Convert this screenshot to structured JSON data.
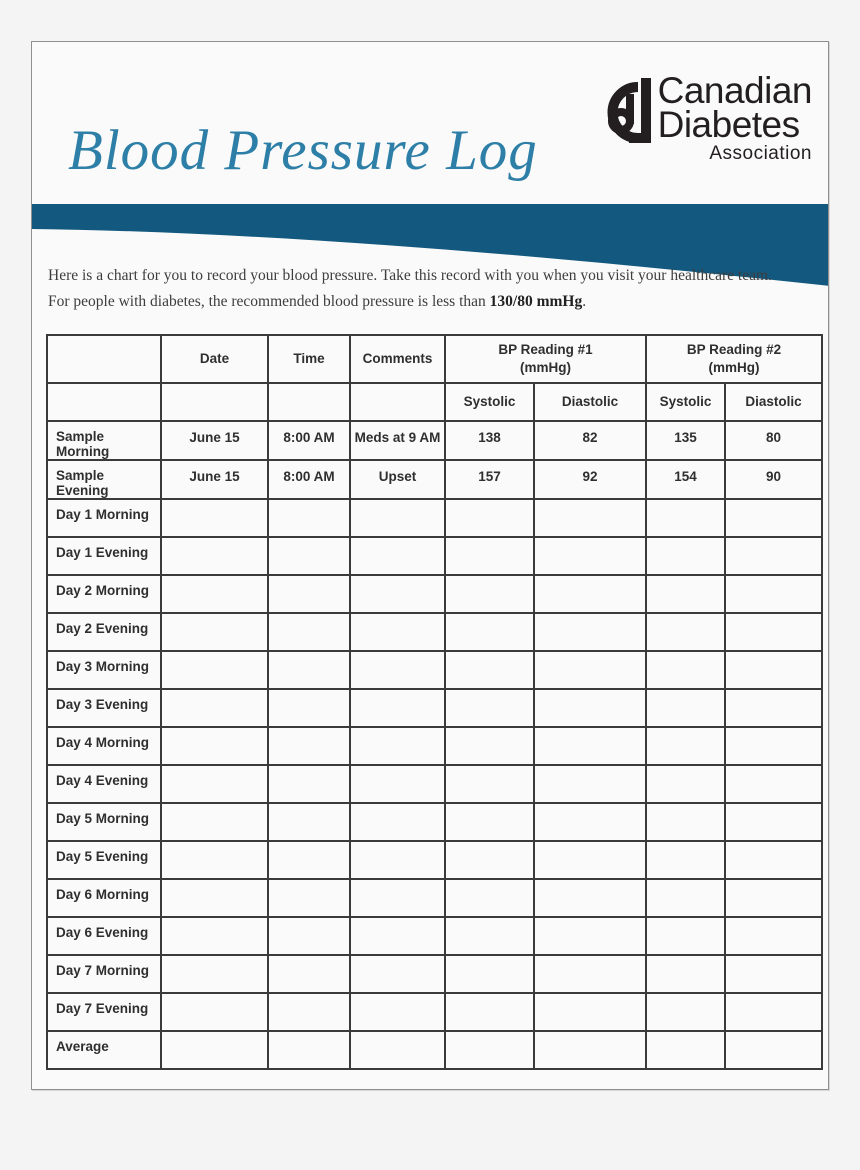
{
  "colors": {
    "title_teal": "#2e7fa7",
    "band_blue": "#13597f",
    "table_border": "#3a3a3a",
    "logo_ink": "#231f20"
  },
  "header": {
    "title": "Blood Pressure Log",
    "logo": {
      "line1": "Canadian",
      "line2": "Diabetes",
      "line3": "Association"
    }
  },
  "intro": {
    "line1": "Here is a chart for you to record your blood pressure. Take this record with you when you visit your healthcare team.",
    "line2_prefix": "For people with diabetes, the recommended blood pressure is less than ",
    "line2_bold": "130/80 mmHg",
    "line2_suffix": "."
  },
  "table": {
    "col_headers": {
      "row_label": "",
      "date": "Date",
      "time": "Time",
      "comments": "Comments"
    },
    "groups": [
      {
        "title": "BP Reading #1",
        "unit": "(mmHg)"
      },
      {
        "title": "BP Reading #2",
        "unit": "(mmHg)"
      }
    ],
    "sub_headers": [
      "Systolic",
      "Diastolic",
      "Systolic",
      "Diastolic"
    ],
    "rows": [
      {
        "label": "Sample Morning",
        "cells": [
          "June 15",
          "8:00 AM",
          "Meds at 9 AM",
          "138",
          "82",
          "135",
          "80"
        ]
      },
      {
        "label": "Sample Evening",
        "cells": [
          "June 15",
          "8:00 AM",
          "Upset",
          "157",
          "92",
          "154",
          "90"
        ]
      },
      {
        "label": "Day 1 Morning",
        "cells": [
          "",
          "",
          "",
          "",
          "",
          "",
          ""
        ]
      },
      {
        "label": "Day 1 Evening",
        "cells": [
          "",
          "",
          "",
          "",
          "",
          "",
          ""
        ]
      },
      {
        "label": "Day 2 Morning",
        "cells": [
          "",
          "",
          "",
          "",
          "",
          "",
          ""
        ]
      },
      {
        "label": "Day 2 Evening",
        "cells": [
          "",
          "",
          "",
          "",
          "",
          "",
          ""
        ]
      },
      {
        "label": "Day 3 Morning",
        "cells": [
          "",
          "",
          "",
          "",
          "",
          "",
          ""
        ]
      },
      {
        "label": "Day 3 Evening",
        "cells": [
          "",
          "",
          "",
          "",
          "",
          "",
          ""
        ]
      },
      {
        "label": "Day 4 Morning",
        "cells": [
          "",
          "",
          "",
          "",
          "",
          "",
          ""
        ]
      },
      {
        "label": "Day 4 Evening",
        "cells": [
          "",
          "",
          "",
          "",
          "",
          "",
          ""
        ]
      },
      {
        "label": "Day 5 Morning",
        "cells": [
          "",
          "",
          "",
          "",
          "",
          "",
          ""
        ]
      },
      {
        "label": "Day 5 Evening",
        "cells": [
          "",
          "",
          "",
          "",
          "",
          "",
          ""
        ]
      },
      {
        "label": "Day 6 Morning",
        "cells": [
          "",
          "",
          "",
          "",
          "",
          "",
          ""
        ]
      },
      {
        "label": "Day 6 Evening",
        "cells": [
          "",
          "",
          "",
          "",
          "",
          "",
          ""
        ]
      },
      {
        "label": "Day 7 Morning",
        "cells": [
          "",
          "",
          "",
          "",
          "",
          "",
          ""
        ]
      },
      {
        "label": "Day 7 Evening",
        "cells": [
          "",
          "",
          "",
          "",
          "",
          "",
          ""
        ]
      },
      {
        "label": "Average",
        "cells": [
          "",
          "",
          "",
          "",
          "",
          "",
          ""
        ]
      }
    ]
  }
}
